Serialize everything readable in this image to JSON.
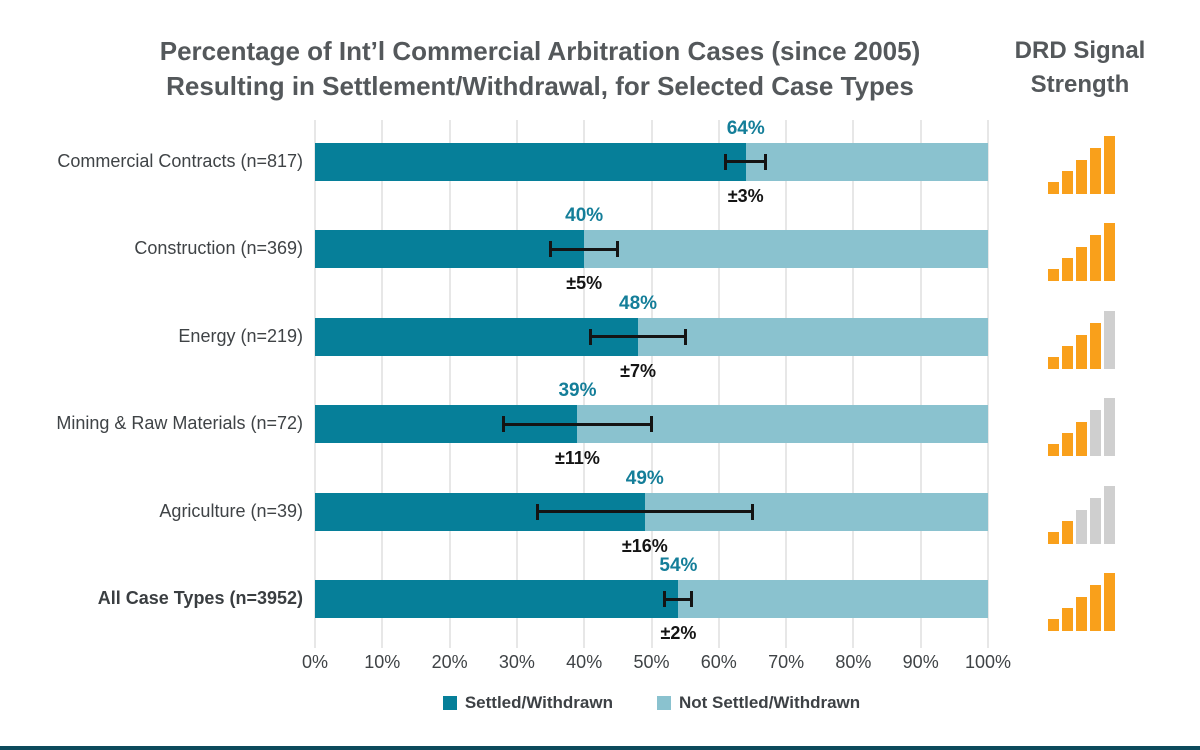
{
  "header": {
    "title_line1": "Percentage of Int’l Commercial Arbitration Cases (since 2005)",
    "title_line2": "Resulting in Settlement/Withdrawal, for Selected Case Types",
    "drd_title_line1": "DRD Signal",
    "drd_title_line2": "Strength"
  },
  "chart_data": {
    "type": "bar",
    "orientation": "horizontal",
    "stacked": true,
    "title": "Percentage of Int’l Commercial Arbitration Cases (since 2005) Resulting in Settlement/Withdrawal, for Selected Case Types",
    "categories": [
      "Commercial Contracts (n=817)",
      "Construction (n=369)",
      "Energy (n=219)",
      "Mining & Raw Materials (n=72)",
      "Agriculture (n=39)",
      "All Case Types (n=3952)"
    ],
    "emphasized_category_index": 5,
    "series": [
      {
        "name": "Settled/Withdrawn",
        "color": "#067F99",
        "values": [
          64,
          40,
          48,
          39,
          49,
          54
        ]
      },
      {
        "name": "Not Settled/Withdrawn",
        "color": "#8AC2CF",
        "values": [
          36,
          60,
          52,
          61,
          51,
          46
        ]
      }
    ],
    "value_labels": [
      "64%",
      "40%",
      "48%",
      "39%",
      "49%",
      "54%"
    ],
    "error_margins_pct": [
      3,
      5,
      7,
      11,
      16,
      2
    ],
    "error_labels": [
      "±3%",
      "±5%",
      "±7%",
      "±11%",
      "±16%",
      "±2%"
    ],
    "axis": {
      "min": 0,
      "max": 100,
      "tick_labels": [
        "0%",
        "10%",
        "20%",
        "30%",
        "40%",
        "50%",
        "60%",
        "70%",
        "80%",
        "90%",
        "100%"
      ]
    },
    "legend_position": "bottom",
    "grid": true,
    "signal_strength": {
      "label": "DRD Signal Strength",
      "max_bars": 5,
      "levels": [
        5,
        5,
        4,
        3,
        2,
        5
      ],
      "active_color": "#F9A01B",
      "inactive_color": "#CFCFCF"
    },
    "colors": {
      "value_label": "#147E99",
      "error_label": "#141414",
      "gridline": "#E7E7E7",
      "title_text": "#54585B",
      "footer_bar": "#0D4B5C"
    }
  }
}
